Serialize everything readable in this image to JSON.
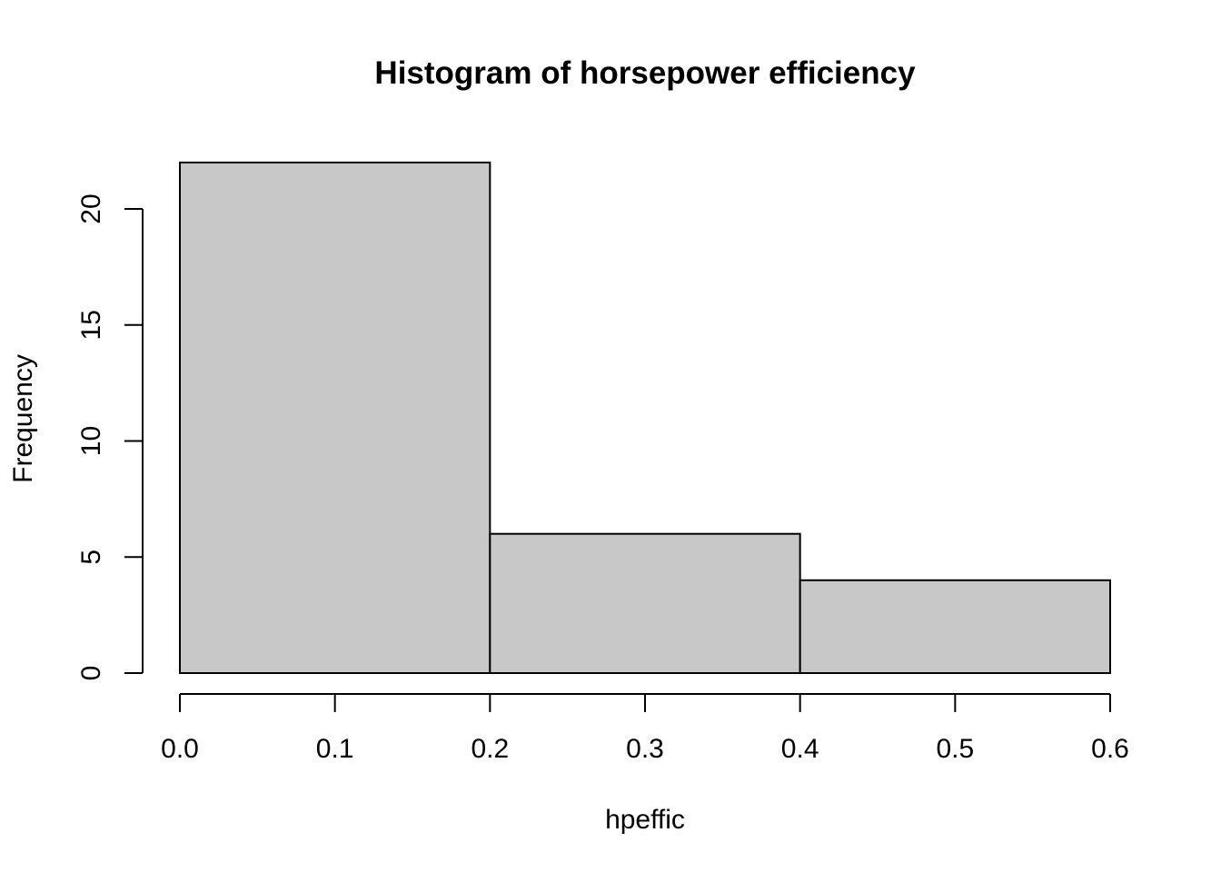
{
  "chart_data": {
    "type": "bar",
    "subtype": "histogram",
    "title": "Histogram of horsepower efficiency",
    "xlabel": "hpeffic",
    "ylabel": "Frequency",
    "bins": [
      {
        "x0": 0.0,
        "x1": 0.2,
        "count": 22
      },
      {
        "x0": 0.2,
        "x1": 0.4,
        "count": 6
      },
      {
        "x0": 0.4,
        "x1": 0.6,
        "count": 4
      }
    ],
    "xlim": [
      0.0,
      0.6
    ],
    "ylim": [
      0,
      22
    ],
    "xticks": [
      "0.0",
      "0.1",
      "0.2",
      "0.3",
      "0.4",
      "0.5",
      "0.6"
    ],
    "yticks": [
      "0",
      "5",
      "10",
      "15",
      "20"
    ],
    "bar_color": "#c8c8c8",
    "border_color": "#000000",
    "grid": false,
    "legend": "none"
  }
}
